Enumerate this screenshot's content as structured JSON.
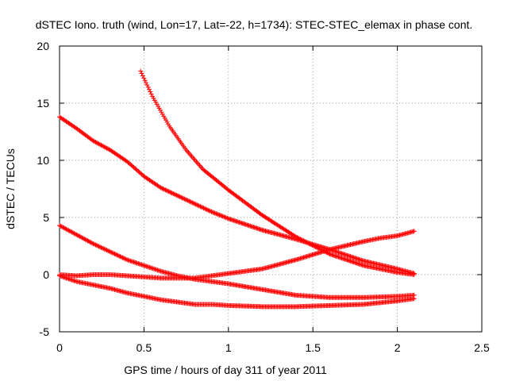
{
  "chart_data": {
    "type": "scatter",
    "title": "dSTEC Iono. truth (wind, Lon=17, Lat=-22, h=1734): STEC-STEC_elemax in phase cont.",
    "xlabel": "GPS time / hours of day 311 of year 2011",
    "ylabel": "dSTEC  / TECUs",
    "xlim": [
      0,
      2.5
    ],
    "ylim": [
      -5,
      20
    ],
    "xticks": [
      0,
      0.5,
      1,
      1.5,
      2,
      2.5
    ],
    "xtick_labels": [
      "0",
      "0.5",
      "1",
      "1.5",
      "2",
      "2.5"
    ],
    "yticks": [
      -5,
      0,
      5,
      10,
      15,
      20
    ],
    "ytick_labels": [
      "-5",
      "0",
      "5",
      "10",
      "15",
      "20"
    ],
    "grid": true,
    "marker": "+",
    "color": "#ff0000",
    "series": [
      {
        "x": [
          0.48,
          0.55,
          0.65,
          0.75,
          0.85,
          1.0,
          1.2,
          1.4,
          1.6,
          1.8,
          2.0,
          2.1
        ],
        "y": [
          17.8,
          15.6,
          13.0,
          10.9,
          9.2,
          7.4,
          5.2,
          3.3,
          1.8,
          0.8,
          0.2,
          0.0
        ]
      },
      {
        "x": [
          0.0,
          0.1,
          0.2,
          0.3,
          0.4,
          0.5,
          0.6,
          0.7,
          0.8,
          0.9,
          1.0,
          1.2,
          1.4,
          1.6,
          1.8,
          2.0,
          2.1
        ],
        "y": [
          13.8,
          12.8,
          11.7,
          10.9,
          9.9,
          8.6,
          7.6,
          6.9,
          6.2,
          5.5,
          4.9,
          3.9,
          3.1,
          2.2,
          1.2,
          0.5,
          0.1
        ]
      },
      {
        "x": [
          0.0,
          0.1,
          0.2,
          0.3,
          0.4,
          0.5,
          0.6,
          0.7,
          0.8,
          0.9,
          1.0,
          1.2,
          1.4,
          1.6,
          1.8,
          2.0,
          2.1
        ],
        "y": [
          4.3,
          3.5,
          2.7,
          2.0,
          1.3,
          0.8,
          0.3,
          -0.1,
          -0.4,
          -0.6,
          -0.8,
          -1.3,
          -1.8,
          -2.0,
          -2.0,
          -1.9,
          -1.8
        ]
      },
      {
        "x": [
          0.0,
          0.1,
          0.2,
          0.3,
          0.4,
          0.5,
          0.6,
          0.7,
          0.8,
          0.9,
          1.0,
          1.2,
          1.4,
          1.6,
          1.8,
          1.9,
          2.0,
          2.1
        ],
        "y": [
          0.0,
          -0.1,
          0.0,
          0.0,
          -0.1,
          -0.2,
          -0.3,
          -0.3,
          -0.3,
          -0.1,
          0.1,
          0.5,
          1.3,
          2.2,
          2.9,
          3.2,
          3.4,
          3.8
        ]
      },
      {
        "x": [
          0.0,
          0.1,
          0.2,
          0.3,
          0.4,
          0.5,
          0.6,
          0.7,
          0.8,
          0.9,
          1.0,
          1.2,
          1.4,
          1.6,
          1.8,
          2.0,
          2.1
        ],
        "y": [
          -0.1,
          -0.6,
          -0.9,
          -1.2,
          -1.6,
          -1.9,
          -2.2,
          -2.4,
          -2.6,
          -2.6,
          -2.7,
          -2.8,
          -2.8,
          -2.7,
          -2.6,
          -2.3,
          -2.1
        ]
      }
    ]
  }
}
